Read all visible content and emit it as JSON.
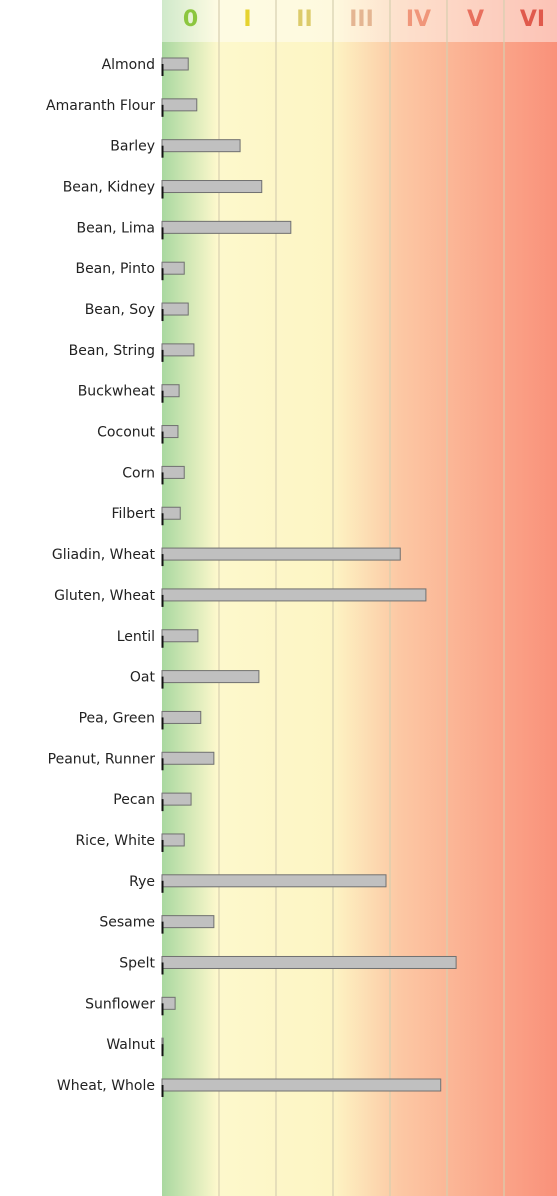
{
  "chart_data": {
    "type": "bar",
    "orientation": "horizontal",
    "categories": [
      "Almond",
      "Amaranth Flour",
      "Barley",
      "Bean, Kidney",
      "Bean, Lima",
      "Bean, Pinto",
      "Bean, Soy",
      "Bean, String",
      "Buckwheat",
      "Coconut",
      "Corn",
      "Filbert",
      "Gliadin, Wheat",
      "Gluten, Wheat",
      "Lentil",
      "Oat",
      "Pea, Green",
      "Peanut, Runner",
      "Pecan",
      "Rice, White",
      "Rye",
      "Sesame",
      "Spelt",
      "Sunflower",
      "Walnut",
      "Wheat, Whole"
    ],
    "values": [
      0.46,
      0.61,
      1.37,
      1.75,
      2.26,
      0.39,
      0.46,
      0.56,
      0.3,
      0.28,
      0.39,
      0.32,
      4.18,
      4.63,
      0.63,
      1.7,
      0.68,
      0.91,
      0.51,
      0.39,
      3.93,
      0.91,
      5.16,
      0.23,
      0.02,
      4.89
    ],
    "color": "#c0c0c0",
    "xlim": [
      0,
      6.93
    ],
    "xticks": [
      0,
      {
        "value": 1,
        "label": "I"
      },
      {
        "value": 2,
        "label": "II"
      },
      {
        "value": 3,
        "label": "III"
      },
      {
        "value": 4,
        "label": "IV"
      },
      {
        "value": 5,
        "label": "V"
      },
      {
        "value": 6,
        "label": "VI"
      }
    ],
    "xtick_colors": [
      "#8cc63f",
      "#e6d22e",
      "#dccb6a",
      "#e4b592",
      "#f0967a",
      "#e8705e",
      "#e05a4c"
    ],
    "grid": true
  }
}
